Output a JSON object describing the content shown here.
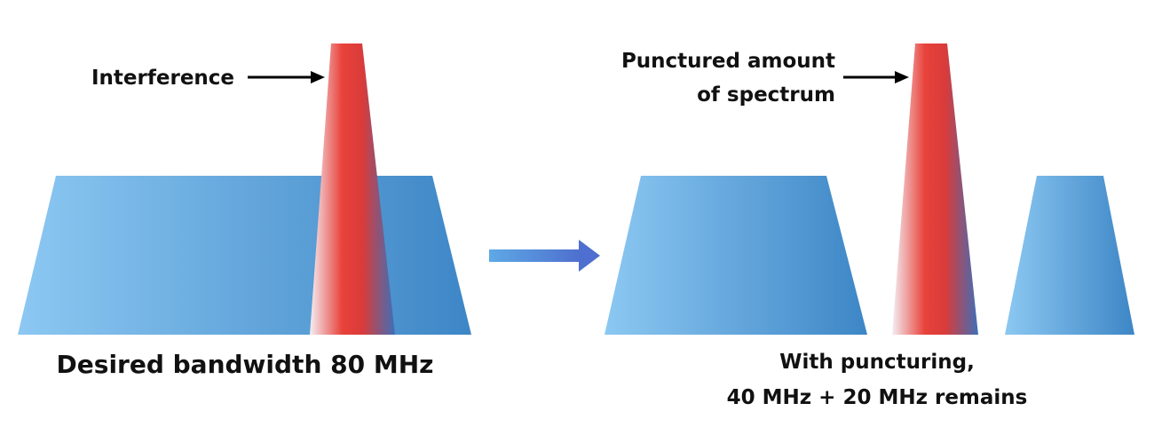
{
  "left_panel": {
    "interference_label": "Interference",
    "caption": "Desired bandwidth 80 MHz"
  },
  "right_panel": {
    "punctured_label_line1": "Punctured amount",
    "punctured_label_line2": "of spectrum",
    "caption_line1": "With puncturing,",
    "caption_line2": "40 MHz + 20 MHz remains"
  },
  "colors": {
    "spectrum_light": "#8cc8f2",
    "spectrum_dark": "#3d86c6",
    "interference_red": "#e8423a",
    "interference_white": "#f4eef3",
    "interference_blue": "#3e6fb8",
    "transition_arrow": "#4f7fd3",
    "text": "#111111"
  }
}
